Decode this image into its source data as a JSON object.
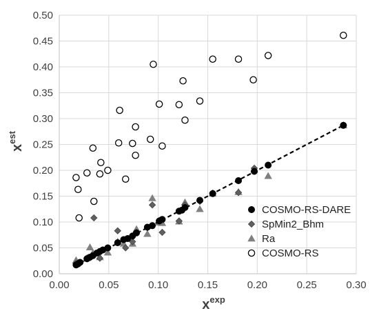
{
  "chart_data": {
    "type": "scatter",
    "xlabel": {
      "base": "x",
      "sup": "exp"
    },
    "ylabel": {
      "base": "x",
      "sup": "est"
    },
    "xlim": [
      0.0,
      0.3
    ],
    "ylim": [
      0.0,
      0.5
    ],
    "xticks": [
      "0.00",
      "0.05",
      "0.10",
      "0.15",
      "0.20",
      "0.25",
      "0.30"
    ],
    "yticks": [
      "0.00",
      "0.05",
      "0.10",
      "0.15",
      "0.20",
      "0.25",
      "0.30",
      "0.35",
      "0.40",
      "0.45",
      "0.50"
    ],
    "grid": true,
    "legend_position": "right",
    "trendline": {
      "style": "dashed",
      "color": "#000000",
      "x": [
        0.017,
        0.287
      ],
      "y": [
        0.017,
        0.287
      ]
    },
    "series": [
      {
        "name": "COSMO-RS-DARE",
        "marker": "filled-circle",
        "color": "#000000",
        "points": [
          [
            0.017,
            0.017
          ],
          [
            0.019,
            0.019
          ],
          [
            0.021,
            0.022
          ],
          [
            0.028,
            0.029
          ],
          [
            0.031,
            0.032
          ],
          [
            0.034,
            0.035
          ],
          [
            0.038,
            0.04
          ],
          [
            0.041,
            0.043
          ],
          [
            0.044,
            0.046
          ],
          [
            0.049,
            0.05
          ],
          [
            0.059,
            0.06
          ],
          [
            0.065,
            0.066
          ],
          [
            0.069,
            0.068
          ],
          [
            0.074,
            0.073
          ],
          [
            0.078,
            0.079
          ],
          [
            0.089,
            0.09
          ],
          [
            0.094,
            0.093
          ],
          [
            0.101,
            0.102
          ],
          [
            0.104,
            0.105
          ],
          [
            0.121,
            0.121
          ],
          [
            0.124,
            0.123
          ],
          [
            0.127,
            0.128
          ],
          [
            0.142,
            0.142
          ],
          [
            0.155,
            0.155
          ],
          [
            0.181,
            0.18
          ],
          [
            0.197,
            0.198
          ],
          [
            0.211,
            0.21
          ],
          [
            0.287,
            0.287
          ]
        ]
      },
      {
        "name": "SpMin2_Bhm",
        "marker": "diamond",
        "color": "#606060",
        "points": [
          [
            0.017,
            0.02
          ],
          [
            0.028,
            0.03
          ],
          [
            0.035,
            0.108
          ],
          [
            0.041,
            0.03
          ],
          [
            0.059,
            0.083
          ],
          [
            0.067,
            0.05
          ],
          [
            0.074,
            0.062
          ],
          [
            0.078,
            0.08
          ],
          [
            0.089,
            0.089
          ],
          [
            0.094,
            0.133
          ],
          [
            0.101,
            0.103
          ],
          [
            0.104,
            0.08
          ],
          [
            0.121,
            0.102
          ],
          [
            0.127,
            0.133
          ],
          [
            0.142,
            0.14
          ],
          [
            0.155,
            0.156
          ],
          [
            0.181,
            0.157
          ],
          [
            0.197,
            0.204
          ],
          [
            0.287,
            0.287
          ]
        ]
      },
      {
        "name": "Ra",
        "marker": "triangle",
        "color": "#808080",
        "points": [
          [
            0.017,
            0.026
          ],
          [
            0.028,
            0.03
          ],
          [
            0.031,
            0.051
          ],
          [
            0.034,
            0.04
          ],
          [
            0.041,
            0.032
          ],
          [
            0.049,
            0.041
          ],
          [
            0.059,
            0.062
          ],
          [
            0.065,
            0.058
          ],
          [
            0.074,
            0.058
          ],
          [
            0.078,
            0.086
          ],
          [
            0.089,
            0.077
          ],
          [
            0.094,
            0.146
          ],
          [
            0.101,
            0.099
          ],
          [
            0.104,
            0.098
          ],
          [
            0.121,
            0.101
          ],
          [
            0.127,
            0.138
          ],
          [
            0.142,
            0.125
          ],
          [
            0.155,
            0.155
          ],
          [
            0.181,
            0.158
          ],
          [
            0.197,
            0.202
          ],
          [
            0.211,
            0.189
          ],
          [
            0.287,
            0.287
          ]
        ]
      },
      {
        "name": "COSMO-RS",
        "marker": "open-circle",
        "color": "#000000",
        "points": [
          [
            0.017,
            0.186
          ],
          [
            0.019,
            0.163
          ],
          [
            0.02,
            0.108
          ],
          [
            0.028,
            0.195
          ],
          [
            0.034,
            0.243
          ],
          [
            0.035,
            0.14
          ],
          [
            0.041,
            0.193
          ],
          [
            0.042,
            0.215
          ],
          [
            0.049,
            0.2
          ],
          [
            0.06,
            0.253
          ],
          [
            0.061,
            0.316
          ],
          [
            0.067,
            0.183
          ],
          [
            0.074,
            0.252
          ],
          [
            0.077,
            0.229
          ],
          [
            0.077,
            0.284
          ],
          [
            0.092,
            0.26
          ],
          [
            0.095,
            0.405
          ],
          [
            0.101,
            0.328
          ],
          [
            0.104,
            0.247
          ],
          [
            0.121,
            0.327
          ],
          [
            0.125,
            0.373
          ],
          [
            0.127,
            0.297
          ],
          [
            0.142,
            0.334
          ],
          [
            0.155,
            0.415
          ],
          [
            0.181,
            0.415
          ],
          [
            0.196,
            0.375
          ],
          [
            0.211,
            0.422
          ],
          [
            0.287,
            0.461
          ]
        ]
      }
    ]
  }
}
